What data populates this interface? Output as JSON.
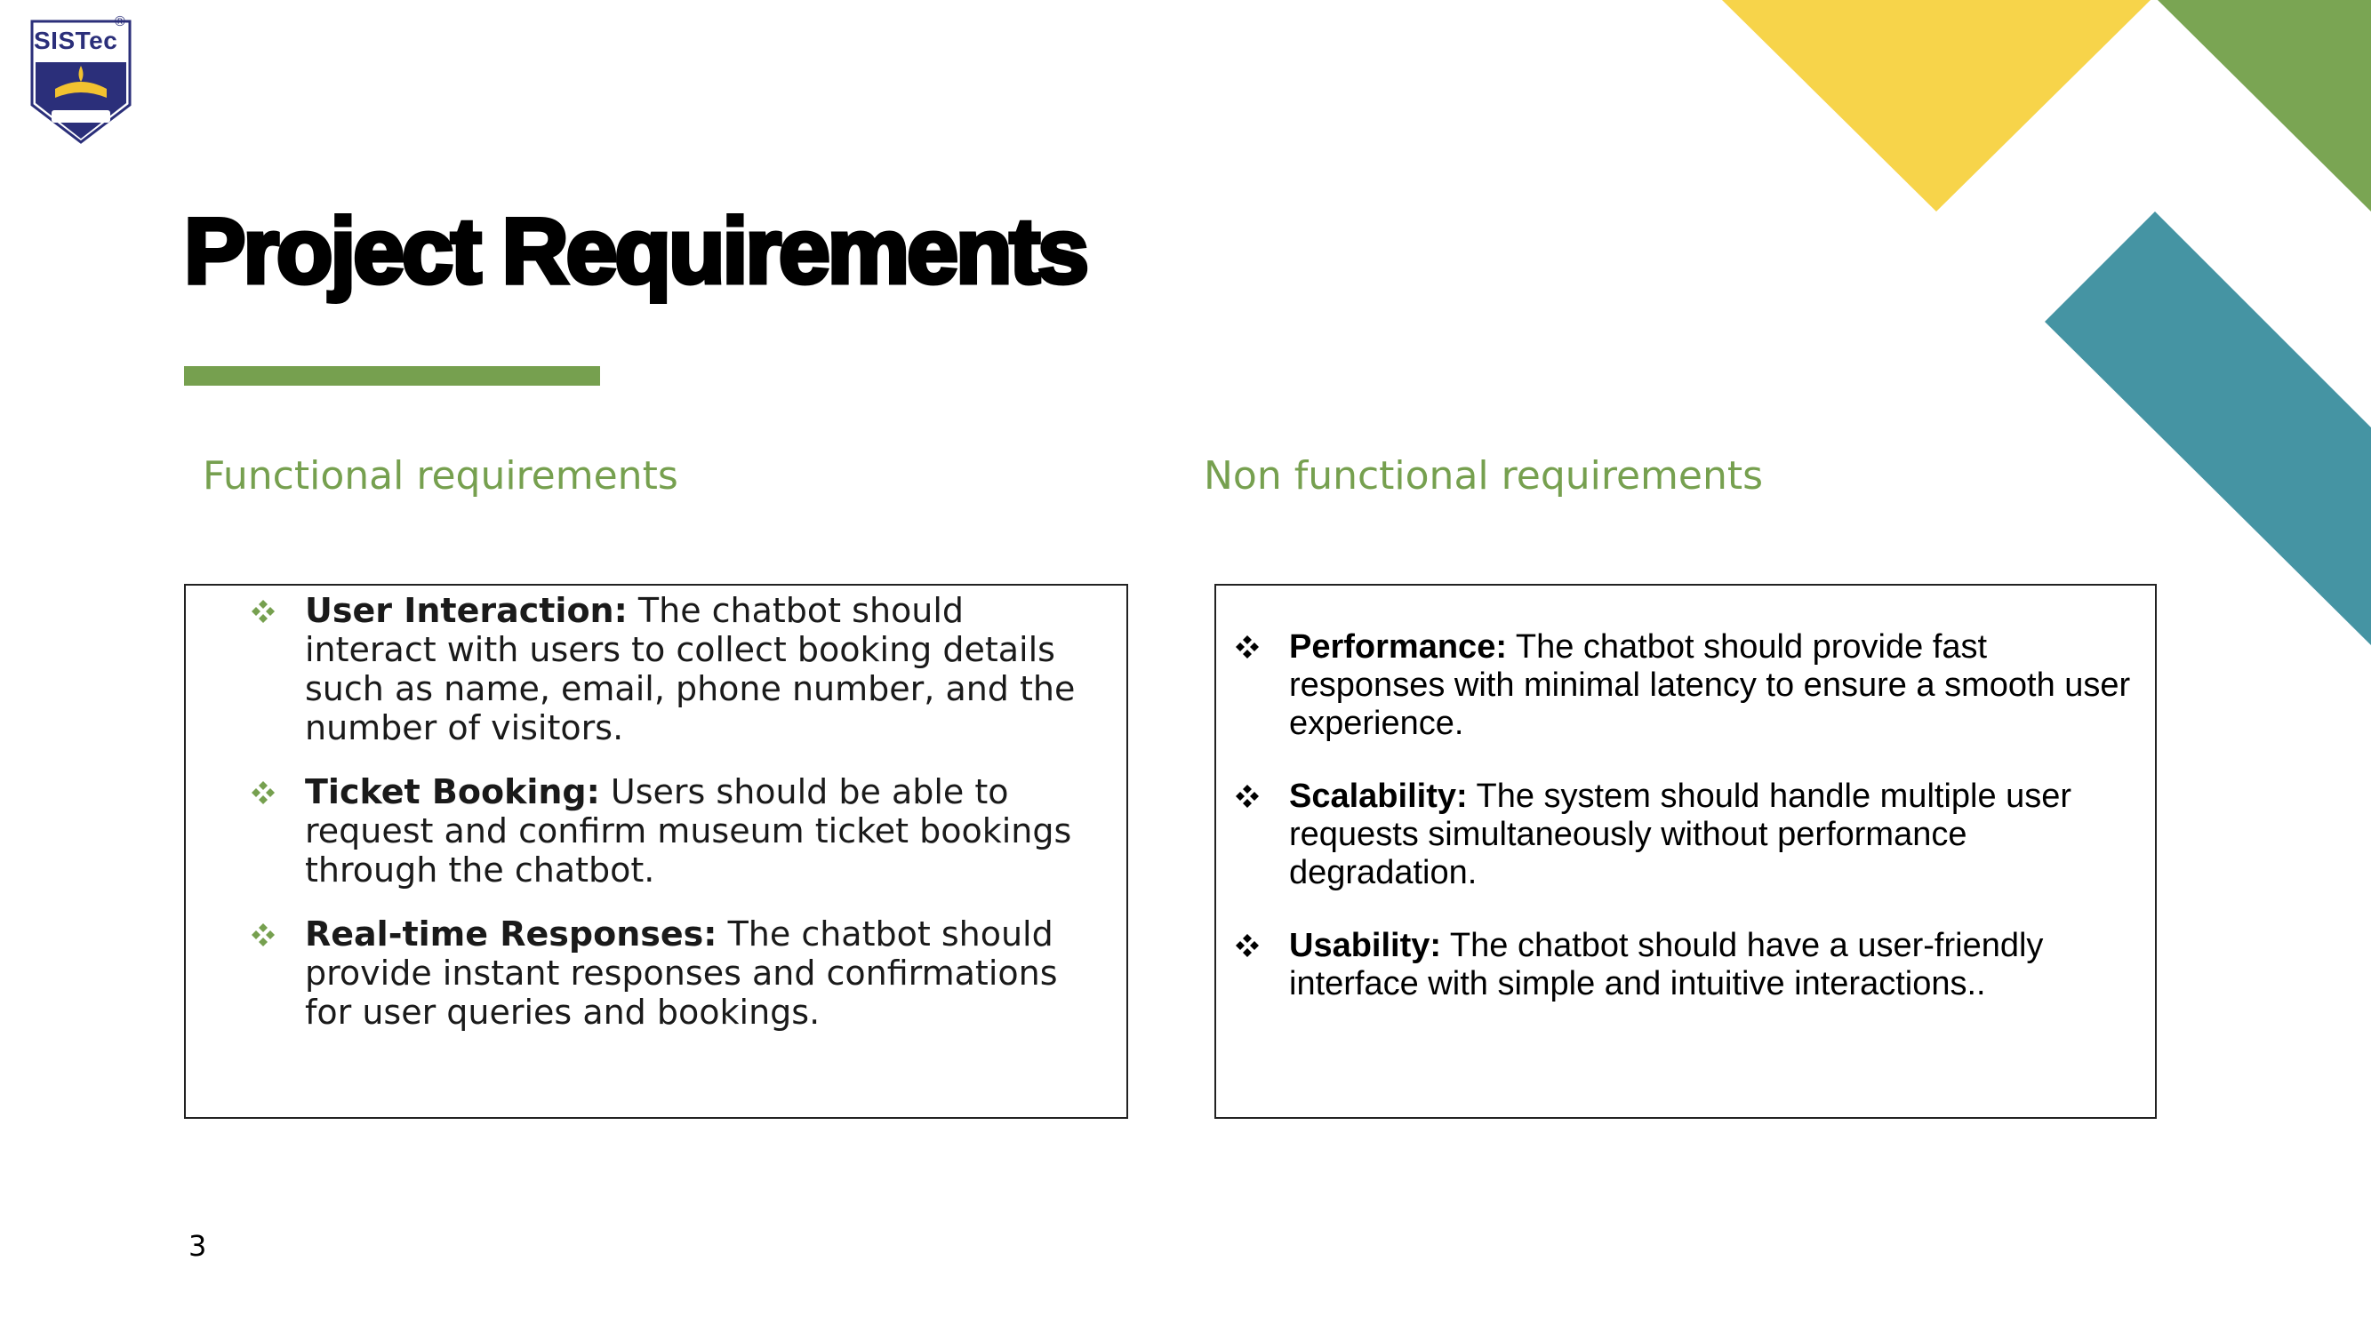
{
  "logo": {
    "text": "SISTec",
    "registered_mark": "®"
  },
  "title": "Project Requirements",
  "colors": {
    "accent_green": "#76a04f",
    "accent_yellow": "#f7d44a",
    "accent_teal": "#4594a3",
    "logo_navy": "#2b2f7a"
  },
  "functional": {
    "heading": "Functional requirements",
    "items": [
      {
        "label": "User Interaction:",
        "text": " The chatbot should interact with users to collect booking details such as name, email, phone number, and the number of visitors."
      },
      {
        "label": "Ticket Booking:",
        "text": " Users should be able to request and confirm museum ticket bookings through the chatbot."
      },
      {
        "label": "Real-time Responses:",
        "text": " The chatbot should provide instant responses and confirmations for user queries and bookings."
      }
    ]
  },
  "non_functional": {
    "heading": "Non functional requirements",
    "items": [
      {
        "label": "Performance:",
        "text": " The chatbot should provide fast responses with minimal latency to ensure a smooth user experience."
      },
      {
        "label": "Scalability:",
        "text": " The system should handle multiple user requests simultaneously without performance degradation."
      },
      {
        "label": "Usability:",
        "text": " The chatbot should have a user-friendly interface with simple and intuitive interactions.."
      }
    ]
  },
  "page_number": "3",
  "icons": {
    "bullet": "four-diamond-bullet-icon",
    "logo": "sistec-shield-logo"
  }
}
